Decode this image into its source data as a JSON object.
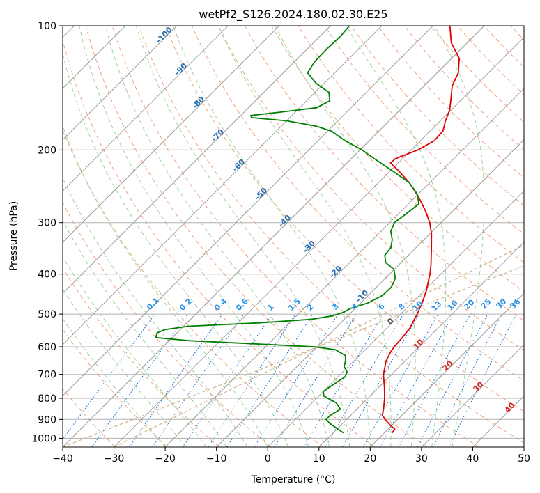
{
  "chart_data": {
    "type": "line",
    "title": "wetPf2_S126.2024.180.02.30.E25",
    "xlabel": "Temperature (°C)",
    "ylabel": "Pressure (hPa)",
    "xlim": [
      -40,
      50
    ],
    "ylim": [
      1050,
      100
    ],
    "y_scale": "log",
    "skew": "skew-T log-P",
    "grid": true,
    "x_ticks": [
      "−40",
      "−30",
      "−20",
      "−10",
      "0",
      "10",
      "20",
      "30",
      "40",
      "50"
    ],
    "y_ticks": [
      "100",
      "200",
      "300",
      "400",
      "500",
      "600",
      "700",
      "800",
      "900",
      "1000"
    ],
    "colors": {
      "temperature": "#e00000",
      "dewpoint": "#008000",
      "isotherm": "#999999",
      "dry_adiabat": "#f4a07a",
      "moist_adiabat": "#9fd29f",
      "mixing_ratio": "#1f77d4",
      "lcl_stroke": "#d2b48c"
    },
    "series": [
      {
        "name": "",
        "role": "temperature",
        "points": [
          {
            "p": 970,
            "t": 21.5
          },
          {
            "p": 950,
            "t": 21.3
          },
          {
            "p": 930,
            "t": 19.7
          },
          {
            "p": 900,
            "t": 17.5
          },
          {
            "p": 880,
            "t": 16.2
          },
          {
            "p": 850,
            "t": 15.2
          },
          {
            "p": 800,
            "t": 13.3
          },
          {
            "p": 750,
            "t": 11.0
          },
          {
            "p": 700,
            "t": 8.4
          },
          {
            "p": 650,
            "t": 6.3
          },
          {
            "p": 620,
            "t": 5.5
          },
          {
            "p": 600,
            "t": 5.1
          },
          {
            "p": 570,
            "t": 4.9
          },
          {
            "p": 540,
            "t": 4.5
          },
          {
            "p": 500,
            "t": 3.2
          },
          {
            "p": 470,
            "t": 2.0
          },
          {
            "p": 440,
            "t": 0.5
          },
          {
            "p": 400,
            "t": -2.1
          },
          {
            "p": 380,
            "t": -3.7
          },
          {
            "p": 350,
            "t": -6.5
          },
          {
            "p": 320,
            "t": -9.6
          },
          {
            "p": 300,
            "t": -12.2
          },
          {
            "p": 280,
            "t": -15.5
          },
          {
            "p": 260,
            "t": -19.4
          },
          {
            "p": 240,
            "t": -24.0
          },
          {
            "p": 225,
            "t": -28.3
          },
          {
            "p": 215,
            "t": -31.5
          },
          {
            "p": 210,
            "t": -31.4
          },
          {
            "p": 200,
            "t": -28.7
          },
          {
            "p": 190,
            "t": -27.3
          },
          {
            "p": 180,
            "t": -27.5
          },
          {
            "p": 170,
            "t": -29.0
          },
          {
            "p": 160,
            "t": -30.3
          },
          {
            "p": 150,
            "t": -32.3
          },
          {
            "p": 140,
            "t": -34.5
          },
          {
            "p": 130,
            "t": -35.9
          },
          {
            "p": 120,
            "t": -38.5
          },
          {
            "p": 110,
            "t": -43.1
          },
          {
            "p": 100,
            "t": -46.7
          }
        ]
      },
      {
        "name": "",
        "role": "dewpoint",
        "points": [
          {
            "p": 970,
            "t": 12.0
          },
          {
            "p": 950,
            "t": 10.2
          },
          {
            "p": 920,
            "t": 7.5
          },
          {
            "p": 900,
            "t": 6.0
          },
          {
            "p": 880,
            "t": 6.0
          },
          {
            "p": 850,
            "t": 6.8
          },
          {
            "p": 820,
            "t": 4.7
          },
          {
            "p": 790,
            "t": 1.0
          },
          {
            "p": 770,
            "t": 0.0
          },
          {
            "p": 740,
            "t": 0.6
          },
          {
            "p": 710,
            "t": 1.4
          },
          {
            "p": 690,
            "t": 0.8
          },
          {
            "p": 670,
            "t": -0.8
          },
          {
            "p": 650,
            "t": -1.6
          },
          {
            "p": 630,
            "t": -2.7
          },
          {
            "p": 610,
            "t": -5.8
          },
          {
            "p": 600,
            "t": -10.5
          },
          {
            "p": 590,
            "t": -23.0
          },
          {
            "p": 580,
            "t": -36.0
          },
          {
            "p": 570,
            "t": -43.2
          },
          {
            "p": 555,
            "t": -43.9
          },
          {
            "p": 545,
            "t": -43.0
          },
          {
            "p": 535,
            "t": -39.0
          },
          {
            "p": 525,
            "t": -26.0
          },
          {
            "p": 515,
            "t": -16.5
          },
          {
            "p": 505,
            "t": -13.0
          },
          {
            "p": 495,
            "t": -11.5
          },
          {
            "p": 485,
            "t": -11.0
          },
          {
            "p": 470,
            "t": -8.6
          },
          {
            "p": 450,
            "t": -7.2
          },
          {
            "p": 430,
            "t": -7.1
          },
          {
            "p": 410,
            "t": -8.0
          },
          {
            "p": 390,
            "t": -10.0
          },
          {
            "p": 375,
            "t": -13.0
          },
          {
            "p": 360,
            "t": -14.6
          },
          {
            "p": 345,
            "t": -14.9
          },
          {
            "p": 330,
            "t": -16.2
          },
          {
            "p": 315,
            "t": -18.1
          },
          {
            "p": 300,
            "t": -19.1
          },
          {
            "p": 285,
            "t": -18.5
          },
          {
            "p": 270,
            "t": -18.0
          },
          {
            "p": 255,
            "t": -20.4
          },
          {
            "p": 240,
            "t": -24.0
          },
          {
            "p": 225,
            "t": -29.5
          },
          {
            "p": 210,
            "t": -35.5
          },
          {
            "p": 200,
            "t": -39.6
          },
          {
            "p": 190,
            "t": -44.7
          },
          {
            "p": 180,
            "t": -49.3
          },
          {
            "p": 175,
            "t": -53.3
          },
          {
            "p": 170,
            "t": -60.0
          },
          {
            "p": 167,
            "t": -67.5
          },
          {
            "p": 165,
            "t": -68.0
          },
          {
            "p": 162,
            "t": -63.0
          },
          {
            "p": 158,
            "t": -56.7
          },
          {
            "p": 152,
            "t": -55.5
          },
          {
            "p": 145,
            "t": -57.3
          },
          {
            "p": 138,
            "t": -61.5
          },
          {
            "p": 130,
            "t": -65.3
          },
          {
            "p": 122,
            "t": -66.1
          },
          {
            "p": 114,
            "t": -66.2
          },
          {
            "p": 106,
            "t": -66.0
          },
          {
            "p": 100,
            "t": -66.3
          }
        ]
      }
    ],
    "moist_adiabat_labels": [
      "-100",
      "-90",
      "-80",
      "-70",
      "-60",
      "-50",
      "-40",
      "-30",
      "-20",
      "-10"
    ],
    "mixing_ratio_labels": [
      "0.1",
      "0.2",
      "0.4",
      "0.6",
      "1",
      "1.5",
      "2",
      "3",
      "4",
      "6",
      "8",
      "10",
      "13",
      "16",
      "20",
      "25",
      "30",
      "36"
    ],
    "dry_adiabat_labels": [
      "0",
      "10",
      "20",
      "30",
      "40"
    ]
  }
}
